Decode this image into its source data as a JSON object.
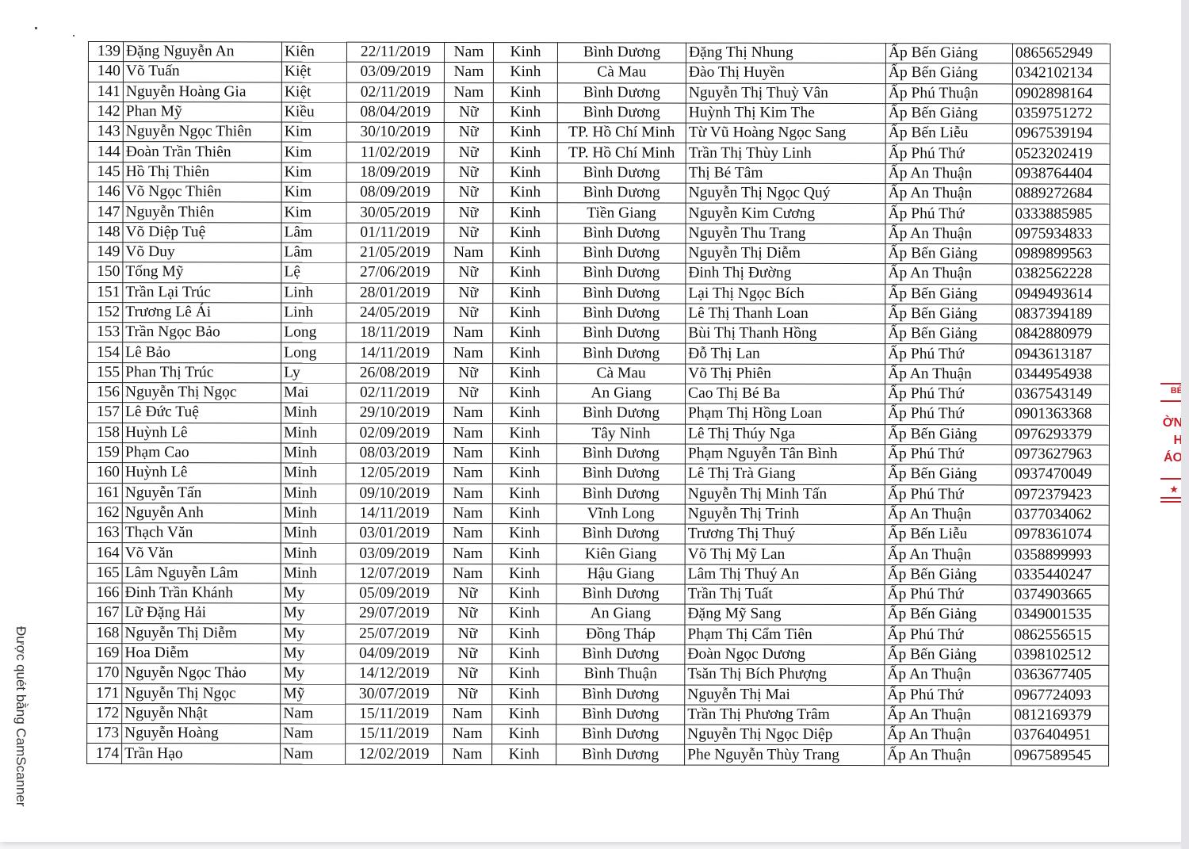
{
  "document": {
    "scanner_watermark": "Được quét bằng CamScanner",
    "stamp_text": [
      "BÉ",
      "ỜN",
      "H",
      "ÁO",
      "★"
    ],
    "stamp_color": "#c8202a",
    "rows": [
      [
        "139",
        "Đặng Nguyễn An",
        "Kiên",
        "22/11/2019",
        "Nam",
        "Kinh",
        "Bình Dương",
        "Đặng Thị Nhung",
        "Ấp Bến Giảng",
        "0865652949"
      ],
      [
        "140",
        "Võ Tuấn",
        "Kiệt",
        "03/09/2019",
        "Nam",
        "Kinh",
        "Cà Mau",
        "Đào Thị Huyền",
        "Ấp Bến Giảng",
        "0342102134"
      ],
      [
        "141",
        "Nguyễn Hoàng Gia",
        "Kiệt",
        "02/11/2019",
        "Nam",
        "Kinh",
        "Bình Dương",
        "Nguyễn Thị Thuỳ Vân",
        "Ấp Phú Thuận",
        "0902898164"
      ],
      [
        "142",
        "Phan Mỹ",
        "Kiều",
        "08/04/2019",
        "Nữ",
        "Kinh",
        "Bình Dương",
        "Huỳnh Thị Kim The",
        "Ấp Bến Giảng",
        "0359751272"
      ],
      [
        "143",
        "Nguyễn Ngọc Thiên",
        "Kim",
        "30/10/2019",
        "Nữ",
        "Kinh",
        "TP. Hồ Chí Minh",
        "Từ Vũ Hoàng Ngọc Sang",
        "Ấp Bến Liễu",
        "0967539194"
      ],
      [
        "144",
        "Đoàn Trần Thiên",
        "Kim",
        "11/02/2019",
        "Nữ",
        "Kinh",
        "TP. Hồ Chí Minh",
        "Trần Thị Thùy Linh",
        "Ấp Phú Thứ",
        "0523202419"
      ],
      [
        "145",
        "Hồ Thị Thiên",
        "Kim",
        "18/09/2019",
        "Nữ",
        "Kinh",
        "Bình Dương",
        "Thị Bé Tâm",
        "Ấp An Thuận",
        "0938764404"
      ],
      [
        "146",
        "Võ Ngọc Thiên",
        "Kim",
        "08/09/2019",
        "Nữ",
        "Kinh",
        "Bình Dương",
        "Nguyễn Thị Ngọc Quý",
        "Ấp An Thuận",
        "0889272684"
      ],
      [
        "147",
        "Nguyễn Thiên",
        "Kim",
        "30/05/2019",
        "Nữ",
        "Kinh",
        "Tiền Giang",
        "Nguyễn Kim Cương",
        "Ấp Phú Thứ",
        "0333885985"
      ],
      [
        "148",
        "Võ Diệp Tuệ",
        "Lâm",
        "01/11/2019",
        "Nữ",
        "Kinh",
        "Bình Dương",
        "Nguyễn Thu Trang",
        "Ấp An Thuận",
        "0975934833"
      ],
      [
        "149",
        "Võ Duy",
        "Lâm",
        "21/05/2019",
        "Nam",
        "Kinh",
        "Bình Dương",
        "Nguyễn Thị Diễm",
        "Ấp Bến Giảng",
        "0989899563"
      ],
      [
        "150",
        "Tống Mỹ",
        "Lệ",
        "27/06/2019",
        "Nữ",
        "Kinh",
        "Bình Dương",
        "Đinh Thị Đường",
        "Ấp An Thuận",
        "0382562228"
      ],
      [
        "151",
        "Trần Lại Trúc",
        "Linh",
        "28/01/2019",
        "Nữ",
        "Kinh",
        "Bình Dương",
        "Lại Thị Ngọc Bích",
        "Ấp Bến Giảng",
        "0949493614"
      ],
      [
        "152",
        "Trương Lê Ái",
        "Linh",
        "24/05/2019",
        "Nữ",
        "Kinh",
        "Bình Dương",
        "Lê Thị Thanh Loan",
        "Ấp Bến Giảng",
        "0837394189"
      ],
      [
        "153",
        "Trần Ngọc Bảo",
        "Long",
        "18/11/2019",
        "Nam",
        "Kinh",
        "Bình Dương",
        "Bùi Thị Thanh Hồng",
        "Ấp Bến Giảng",
        "0842880979"
      ],
      [
        "154",
        "Lê Bảo",
        "Long",
        "14/11/2019",
        "Nam",
        "Kinh",
        "Bình Dương",
        "Đỗ Thị Lan",
        "Ấp Phú Thứ",
        "0943613187"
      ],
      [
        "155",
        "Phan Thị Trúc",
        "Ly",
        "26/08/2019",
        "Nữ",
        "Kinh",
        "Cà Mau",
        "Võ Thị Phiên",
        "Ấp An Thuận",
        "0344954938"
      ],
      [
        "156",
        "Nguyễn Thị Ngọc",
        "Mai",
        "02/11/2019",
        "Nữ",
        "Kinh",
        "An Giang",
        "Cao Thị Bé Ba",
        "Ấp Phú Thứ",
        "0367543149"
      ],
      [
        "157",
        "Lê Đức Tuệ",
        "Minh",
        "29/10/2019",
        "Nam",
        "Kinh",
        "Bình Dương",
        "Phạm Thị Hồng Loan",
        "Ấp Phú Thứ",
        "0901363368"
      ],
      [
        "158",
        "Huỳnh Lê",
        "Minh",
        "02/09/2019",
        "Nam",
        "Kinh",
        "Tây Ninh",
        "Lê Thị Thúy Nga",
        "Ấp Bến Giảng",
        "0976293379"
      ],
      [
        "159",
        "Phạm Cao",
        "Minh",
        "08/03/2019",
        "Nam",
        "Kinh",
        "Bình Dương",
        "Phạm Nguyễn Tân Bình",
        "Ấp Phú Thứ",
        "0973627963"
      ],
      [
        "160",
        "Huỳnh Lê",
        "Minh",
        "12/05/2019",
        "Nam",
        "Kinh",
        "Bình Dương",
        "Lê Thị Trà Giang",
        "Ấp Bến Giảng",
        "0937470049"
      ],
      [
        "161",
        "Nguyễn Tấn",
        "Minh",
        "09/10/2019",
        "Nam",
        "Kinh",
        "Bình Dương",
        "Nguyễn Thị Minh Tấn",
        "Ấp Phú Thứ",
        "0972379423"
      ],
      [
        "162",
        "Nguyễn Anh",
        "Minh",
        "14/11/2019",
        "Nam",
        "Kinh",
        "Vĩnh Long",
        "Nguyễn Thị Trinh",
        "Ấp An Thuận",
        "0377034062"
      ],
      [
        "163",
        "Thạch Văn",
        "Minh",
        "03/01/2019",
        "Nam",
        "Kinh",
        "Bình Dương",
        "Trương Thị Thuý",
        "Ấp Bến Liễu",
        "0978361074"
      ],
      [
        "164",
        "Võ Văn",
        "Minh",
        "03/09/2019",
        "Nam",
        "Kinh",
        "Kiên Giang",
        "Võ Thị Mỹ Lan",
        "Ấp An Thuận",
        "0358899993"
      ],
      [
        "165",
        "Lâm Nguyễn Lâm",
        "Minh",
        "12/07/2019",
        "Nam",
        "Kinh",
        "Hậu Giang",
        "Lâm Thị Thuý An",
        "Ấp Bến Giảng",
        "0335440247"
      ],
      [
        "166",
        "Đinh Trần Khánh",
        "My",
        "05/09/2019",
        "Nữ",
        "Kinh",
        "Bình Dương",
        "Trần Thị Tuất",
        "Ấp Phú Thứ",
        "0374903665"
      ],
      [
        "167",
        "Lữ Đặng Hải",
        "My",
        "29/07/2019",
        "Nữ",
        "Kinh",
        "An Giang",
        "Đặng Mỹ Sang",
        "Ấp Bến Giảng",
        "0349001535"
      ],
      [
        "168",
        "Nguyễn Thị Diễm",
        "My",
        "25/07/2019",
        "Nữ",
        "Kinh",
        "Đồng Tháp",
        "Phạm Thị Cẩm Tiên",
        "Ấp Phú Thứ",
        "0862556515"
      ],
      [
        "169",
        "Hoa Diễm",
        "My",
        "04/09/2019",
        "Nữ",
        "Kinh",
        "Bình Dương",
        "Đoàn Ngọc Dương",
        "Ấp Bến Giảng",
        "0398102512"
      ],
      [
        "170",
        "Nguyễn Ngọc Thảo",
        "My",
        "14/12/2019",
        "Nữ",
        "Kinh",
        "Bình Thuận",
        "Tsăn Thị  Bích Phượng",
        "Ấp An Thuận",
        "0363677405"
      ],
      [
        "171",
        "Nguyễn Thị Ngọc",
        "Mỹ",
        "30/07/2019",
        "Nữ",
        "Kinh",
        "Bình Dương",
        "Nguyễn Thị Mai",
        "Ấp Phú Thứ",
        "0967724093"
      ],
      [
        "172",
        "Nguyễn Nhật",
        "Nam",
        "15/11/2019",
        "Nam",
        "Kinh",
        "Bình Dương",
        "Trần Thị Phương Trâm",
        "Ấp An Thuận",
        "0812169379"
      ],
      [
        "173",
        "Nguyễn Hoàng",
        "Nam",
        "15/11/2019",
        "Nam",
        "Kinh",
        "Bình Dương",
        "Nguyễn Thị Ngọc Diệp",
        "Ấp An Thuận",
        "0376404951"
      ],
      [
        "174",
        "Trần Hạo",
        "Nam",
        "12/02/2019",
        "Nam",
        "Kinh",
        "Bình Dương",
        "Phe Nguyễn Thùy Trang",
        "Ấp An Thuận",
        "0967589545"
      ]
    ]
  }
}
